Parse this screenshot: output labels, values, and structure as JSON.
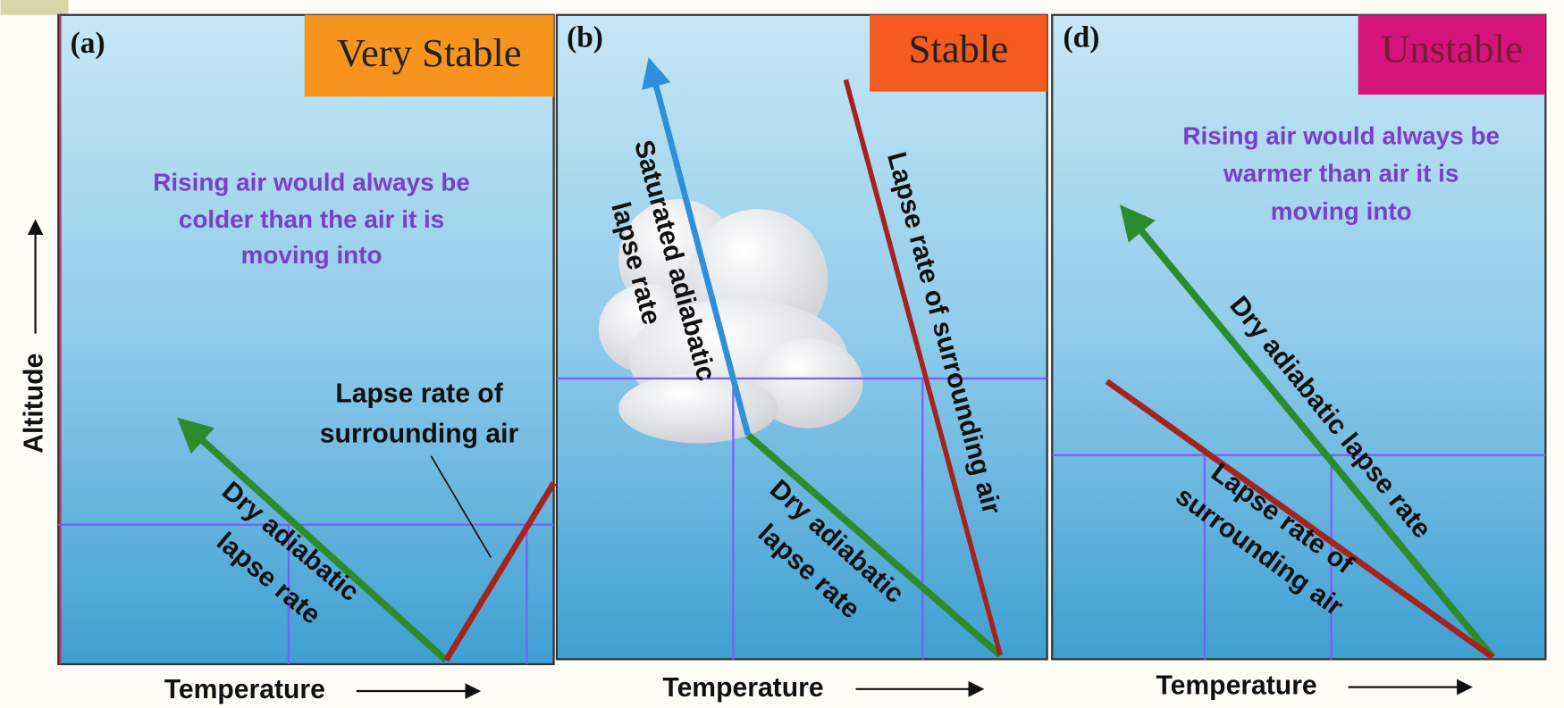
{
  "y_axis": "Altitude",
  "panels": [
    {
      "label": "(a)",
      "stability": "Very Stable",
      "description": [
        "Rising air would always be",
        "colder than the air it is",
        "moving into"
      ],
      "environmental_label": [
        "Lapse rate of",
        "surrounding air"
      ],
      "dry_label": [
        "Dry adiabatic",
        "lapse rate"
      ],
      "x_axis": "Temperature"
    },
    {
      "label": "(b)",
      "stability": "Stable",
      "saturated_label": [
        "Saturated adiabatic",
        "lapse rate"
      ],
      "environmental_label": [
        "Lapse rate of surrounding air"
      ],
      "dry_label": [
        "Dry adiabatic",
        "lapse rate"
      ],
      "x_axis": "Temperature"
    },
    {
      "label": "(d)",
      "stability": "Unstable",
      "description": [
        "Rising air would always be",
        "warmer than air it is",
        "moving into"
      ],
      "dry_label": [
        "Dry adiabatic lapse rate"
      ],
      "environmental_label": [
        "Lapse rate of",
        "surrounding air"
      ],
      "x_axis": "Temperature"
    }
  ]
}
